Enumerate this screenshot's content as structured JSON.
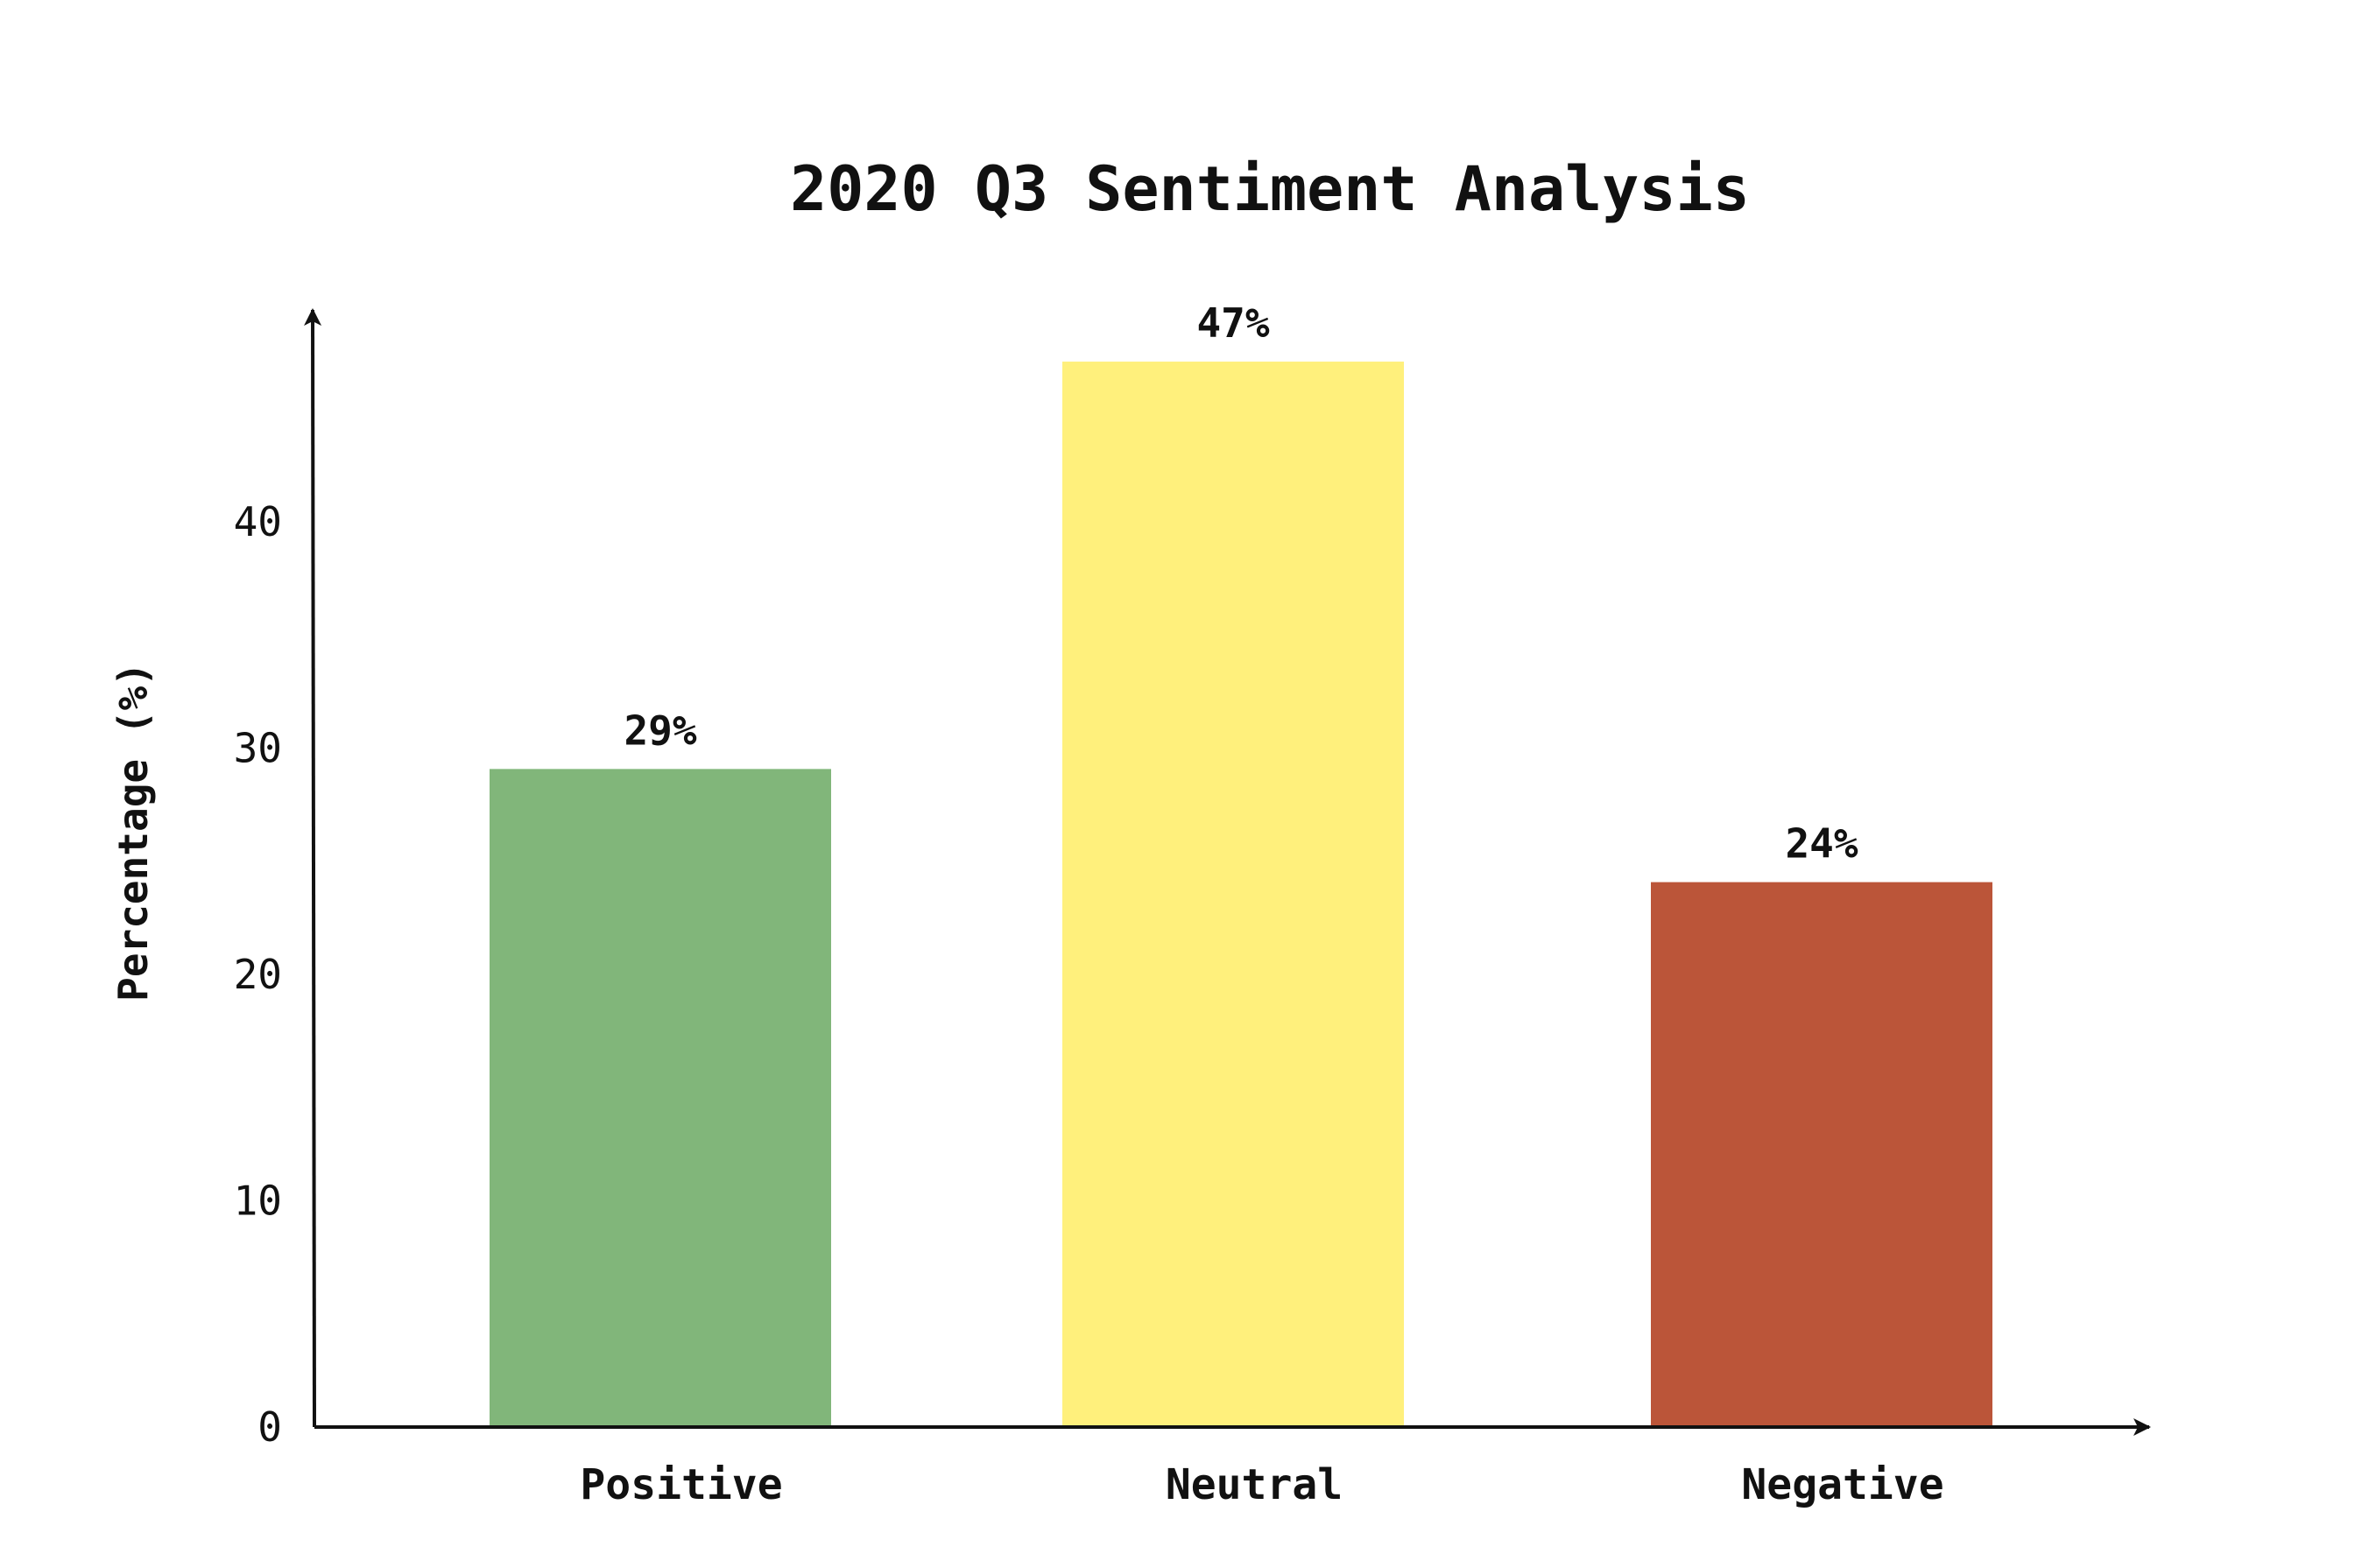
{
  "chart_data": {
    "type": "bar",
    "title": "2020 Q3 Sentiment Analysis",
    "xlabel": "",
    "ylabel": "Percentage (%)",
    "categories": [
      "Positive",
      "Neutral",
      "Negative"
    ],
    "values": [
      29,
      47,
      24
    ],
    "data_labels": [
      "29%",
      "47%",
      "24%"
    ],
    "colors": [
      "#81b67a",
      "#fff07c",
      "#bb5539"
    ],
    "yticks": [
      0,
      10,
      20,
      30,
      40
    ],
    "ylim": [
      0,
      50
    ],
    "grid": false,
    "legend": "none"
  }
}
